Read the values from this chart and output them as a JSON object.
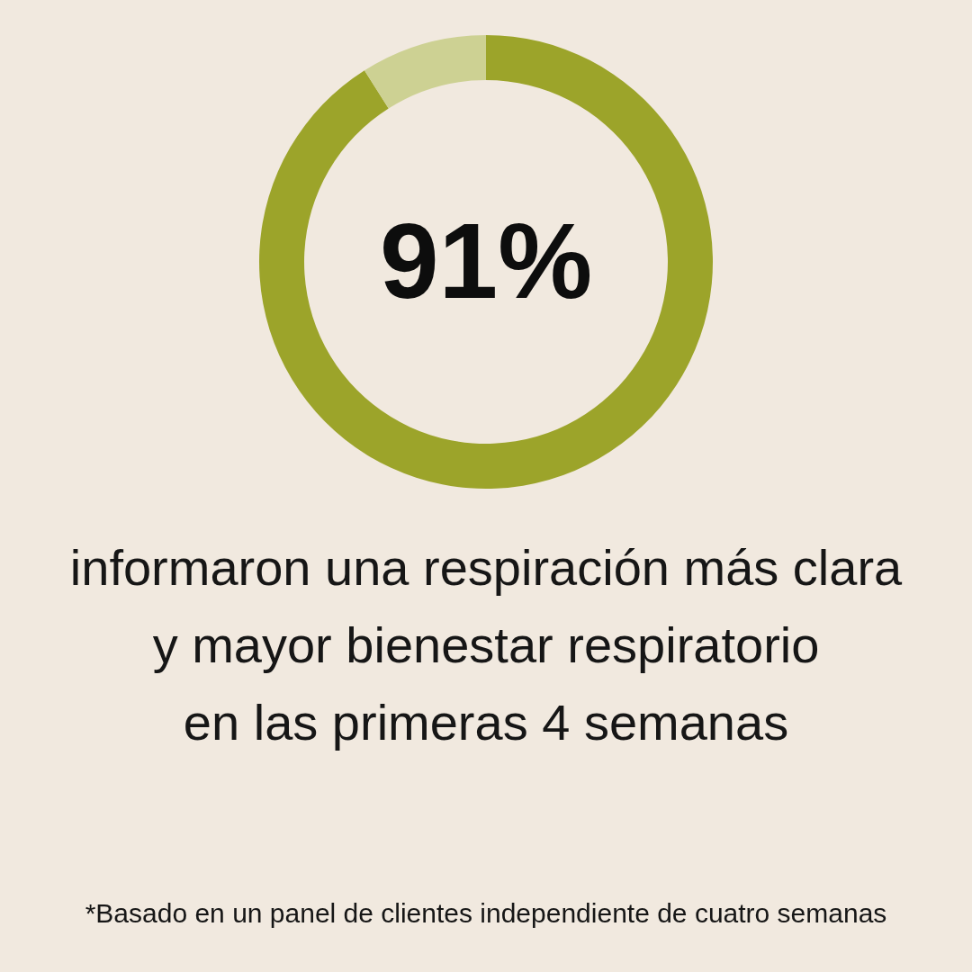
{
  "chart_data": {
    "type": "donut",
    "categories": [
      null,
      null
    ],
    "values": [
      91,
      9
    ],
    "colors": [
      "#9ca42a",
      "#cdd193"
    ],
    "value_labels": [
      "91%",
      null
    ],
    "annotations": [
      "informaron una respiración más clara\ny mayor bienestar respiratorio\nen las primeras 4 semanas",
      "*Basado en un panel de clientes independiente de cuatro semanas"
    ]
  }
}
